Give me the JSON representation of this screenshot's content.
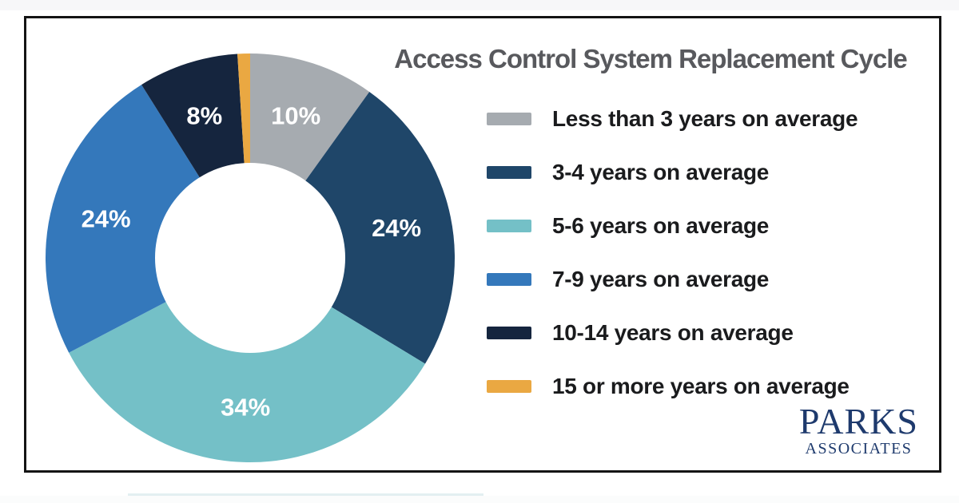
{
  "chart_data": {
    "type": "pie",
    "variant": "donut",
    "title": "Access Control System Replacement Cycle",
    "series": [
      {
        "label": "Less than 3 years on average",
        "value": 10,
        "display_label": "10%",
        "color": "#a6abb0"
      },
      {
        "label": "3-4 years on average",
        "value": 24,
        "display_label": "24%",
        "color": "#1f4669"
      },
      {
        "label": "5-6 years on average",
        "value": 34,
        "display_label": "34%",
        "color": "#74c0c7"
      },
      {
        "label": "7-9 years on average",
        "value": 24,
        "display_label": "24%",
        "color": "#3478bb"
      },
      {
        "label": "10-14 years on average",
        "value": 8,
        "display_label": "8%",
        "color": "#15253e"
      },
      {
        "label": "15 or more years on average",
        "value": 1,
        "display_label": "",
        "color": "#eaa842"
      }
    ],
    "start_angle_deg": 0,
    "direction": "clockwise",
    "hole_ratio": 0.465,
    "slice_label_color": "#ffffff",
    "legend_position": "right"
  },
  "branding": {
    "logo_line1": "PARKS",
    "logo_line2": "ASSOCIATES",
    "logo_color": "#1e3a6d"
  }
}
